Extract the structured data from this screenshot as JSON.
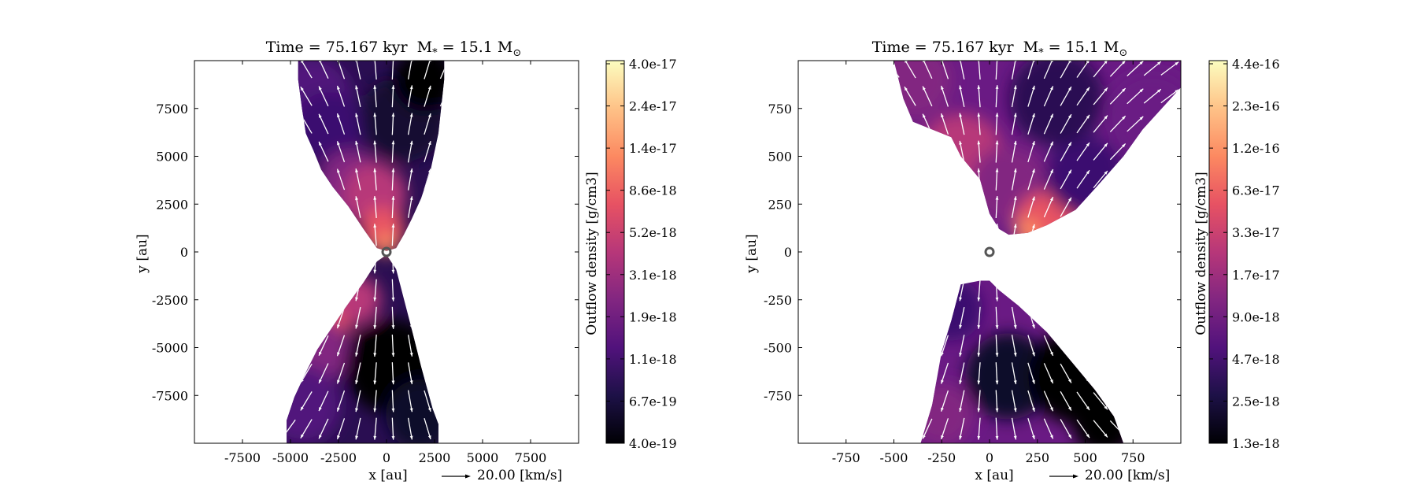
{
  "figure": {
    "panels": [
      {
        "title": "Time = 75.167 kyr    M ∗ = 15.1 M⊙",
        "title_time": "Time = 75.167 kyr",
        "title_mass_prefix": "M",
        "title_mass_sub": "*",
        "title_mass_value": " = 15.1 M",
        "title_mass_unit_sub": "⊙",
        "xlabel": "x [au]",
        "ylabel": "y [au]",
        "arrow_label": "20.00 [km/s]",
        "colorbar_label": "Outflow density [g/cm3]",
        "colorbar_ticks": [
          "4.0e-17",
          "2.4e-17",
          "1.4e-17",
          "8.6e-18",
          "5.2e-18",
          "3.1e-18",
          "1.9e-18",
          "1.1e-18",
          "6.7e-19",
          "4.0e-19"
        ]
      },
      {
        "title_time": "Time = 75.167 kyr",
        "title_mass_prefix": "M",
        "title_mass_sub": "*",
        "title_mass_value": " = 15.1 M",
        "title_mass_unit_sub": "⊙",
        "xlabel": "x [au]",
        "ylabel": "y [au]",
        "arrow_label": "20.00 [km/s]",
        "colorbar_label": "Outflow density [g/cm3]",
        "colorbar_ticks": [
          "4.4e-16",
          "2.3e-16",
          "1.2e-16",
          "6.3e-17",
          "3.3e-17",
          "1.7e-17",
          "9.0e-18",
          "4.7e-18",
          "2.5e-18",
          "1.3e-18"
        ]
      }
    ],
    "colors": {
      "colormap": [
        "#000004",
        "#1d1147",
        "#51127c",
        "#822681",
        "#b73779",
        "#e75263",
        "#fc8961",
        "#fec287",
        "#fcfdbf"
      ],
      "vector": "#ffffff",
      "star_marker": "#555555"
    }
  },
  "chart_data": [
    {
      "type": "heatmap",
      "title": "Time = 75.167 kyr    M* = 15.1 M⊙",
      "xlabel": "x [au]",
      "ylabel": "y [au]",
      "xlim": [
        -10000,
        10000
      ],
      "ylim": [
        -10000,
        10000
      ],
      "xticks": [
        -7500,
        -5000,
        -2500,
        0,
        2500,
        5000,
        7500
      ],
      "xtick_labels": [
        "-7500",
        "-5000",
        "-2500",
        "0",
        "2500",
        "5000",
        "7500"
      ],
      "yticks": [
        7500,
        5000,
        2500,
        0,
        -2500,
        -5000,
        -7500
      ],
      "ytick_labels": [
        "7500",
        "5000",
        "2500",
        "0",
        "-2500",
        "-5000",
        "-7500"
      ],
      "colorbar": {
        "label": "Outflow density [g/cm3]",
        "scale": "log",
        "min": 4e-19,
        "max": 4e-17,
        "ticks": [
          "4.0e-17",
          "2.4e-17",
          "1.4e-17",
          "8.6e-18",
          "5.2e-18",
          "3.1e-18",
          "1.9e-18",
          "1.1e-18",
          "6.7e-19",
          "4.0e-19"
        ]
      },
      "outflow_upper": {
        "x": [
          -4600,
          -4400,
          -4200,
          -3800,
          -3400,
          -2800,
          -2000,
          -1200,
          -500,
          0,
          500,
          900,
          1300,
          1800,
          2300,
          2700,
          3000
        ],
        "y_lower": [
          9000,
          7500,
          6200,
          5300,
          4300,
          3400,
          2400,
          1200,
          200,
          50,
          200,
          900,
          1700,
          2800,
          4300,
          6200,
          9000
        ]
      },
      "outflow_lower": {
        "x": [
          -5200,
          -4800,
          -4200,
          -3600,
          -3000,
          -2200,
          -1200,
          -500,
          0,
          500,
          1200,
          1800,
          2400,
          2700
        ],
        "y_upper": [
          -8800,
          -7600,
          -6300,
          -5100,
          -4200,
          -3000,
          -1600,
          -500,
          -150,
          -900,
          -3600,
          -6000,
          -8200,
          -9000
        ]
      },
      "reference_vector": {
        "speed_kms": 20.0,
        "label": "20.00 [km/s]"
      }
    },
    {
      "type": "heatmap",
      "title": "Time = 75.167 kyr    M* = 15.1 M⊙",
      "xlabel": "x [au]",
      "ylabel": "y [au]",
      "xlim": [
        -1000,
        1000
      ],
      "ylim": [
        -1000,
        1000
      ],
      "xticks": [
        -750,
        -500,
        -250,
        0,
        250,
        500,
        750
      ],
      "xtick_labels": [
        "-750",
        "-500",
        "-250",
        "0",
        "250",
        "500",
        "750"
      ],
      "yticks": [
        750,
        500,
        250,
        0,
        -250,
        -500,
        -750
      ],
      "ytick_labels": [
        "750",
        "500",
        "250",
        "0",
        "-250",
        "-500",
        "-750"
      ],
      "colorbar": {
        "label": "Outflow density [g/cm3]",
        "scale": "log",
        "min": 1.3e-18,
        "max": 4.4e-16,
        "ticks": [
          "4.4e-16",
          "2.3e-16",
          "1.2e-16",
          "6.3e-17",
          "3.3e-17",
          "1.7e-17",
          "9.0e-18",
          "4.7e-18",
          "2.5e-18",
          "1.3e-18"
        ]
      },
      "outflow_upper": {
        "x": [
          -500,
          -450,
          -400,
          -300,
          -250,
          -200,
          -150,
          -50,
          0,
          50,
          100,
          200,
          300,
          450,
          550,
          700,
          800,
          1000
        ],
        "y_lower": [
          1000,
          800,
          680,
          640,
          620,
          600,
          500,
          380,
          200,
          120,
          90,
          100,
          140,
          220,
          330,
          500,
          640,
          860
        ]
      },
      "outflow_lower": {
        "x": [
          -360,
          -300,
          -250,
          -200,
          -150,
          -50,
          0,
          50,
          150,
          300,
          450,
          550,
          650,
          700
        ],
        "y_upper": [
          -1000,
          -800,
          -520,
          -360,
          -170,
          -150,
          -150,
          -200,
          -280,
          -420,
          -600,
          -720,
          -860,
          -1000
        ]
      },
      "reference_vector": {
        "speed_kms": 20.0,
        "label": "20.00 [km/s]"
      }
    }
  ]
}
